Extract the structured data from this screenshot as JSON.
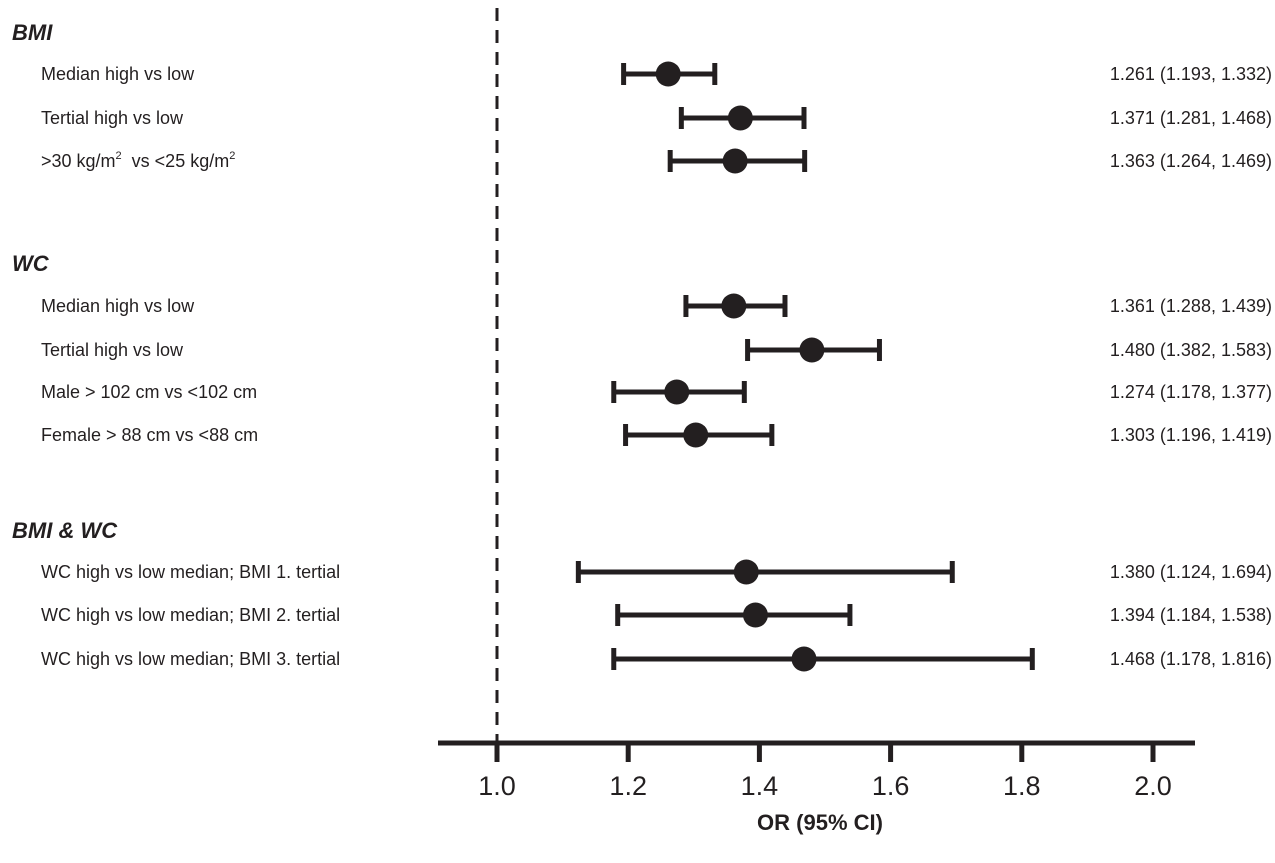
{
  "chart_data": {
    "type": "forest",
    "xlabel": "OR (95% CI)",
    "xlim": [
      0.9,
      2.06
    ],
    "reference_line": 1.0,
    "ticks": [
      1.0,
      1.2,
      1.4,
      1.6,
      1.8,
      2.0
    ],
    "tick_labels": [
      "1.0",
      "1.2",
      "1.4",
      "1.6",
      "1.8",
      "2.0"
    ],
    "colors": {
      "ink": "#231f20"
    },
    "groups": [
      {
        "title": "BMI",
        "rows": [
          {
            "label": "Median high vs low",
            "or": 1.261,
            "lo": 1.193,
            "hi": 1.332,
            "text": "1.261 (1.193, 1.332)"
          },
          {
            "label": "Tertial high vs low",
            "or": 1.371,
            "lo": 1.281,
            "hi": 1.468,
            "text": "1.371 (1.281, 1.468)"
          },
          {
            "label_parts": [
              ">30 kg/m",
              "2",
              "  vs <25 kg/m",
              "2"
            ],
            "or": 1.363,
            "lo": 1.264,
            "hi": 1.469,
            "text": "1.363 (1.264, 1.469)"
          }
        ]
      },
      {
        "title": "WC",
        "rows": [
          {
            "label": "Median high vs low",
            "or": 1.361,
            "lo": 1.288,
            "hi": 1.439,
            "text": "1.361 (1.288, 1.439)"
          },
          {
            "label": "Tertial high vs low",
            "or": 1.48,
            "lo": 1.382,
            "hi": 1.583,
            "text": "1.480 (1.382, 1.583)"
          },
          {
            "label": "Male > 102 cm vs <102 cm",
            "or": 1.274,
            "lo": 1.178,
            "hi": 1.377,
            "text": "1.274 (1.178, 1.377)"
          },
          {
            "label": "Female > 88 cm vs <88 cm",
            "or": 1.303,
            "lo": 1.196,
            "hi": 1.419,
            "text": "1.303 (1.196, 1.419)"
          }
        ]
      },
      {
        "title": "BMI & WC",
        "rows": [
          {
            "label": "WC high vs low median; BMI 1. tertial",
            "or": 1.38,
            "lo": 1.124,
            "hi": 1.694,
            "text": "1.380 (1.124, 1.694)"
          },
          {
            "label": "WC high vs low median; BMI 2. tertial",
            "or": 1.394,
            "lo": 1.184,
            "hi": 1.538,
            "text": "1.394 (1.184, 1.538)"
          },
          {
            "label": "WC high vs low median; BMI 3. tertial",
            "or": 1.468,
            "lo": 1.178,
            "hi": 1.816,
            "text": "1.468 (1.178, 1.816)"
          }
        ]
      }
    ]
  }
}
